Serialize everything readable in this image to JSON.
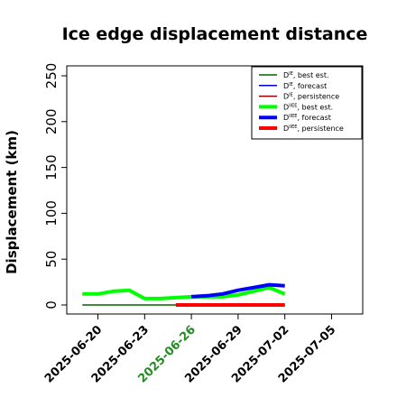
{
  "chart_data": {
    "type": "line",
    "title": "Ice edge displacement distance",
    "ylabel": "Displacement (km)",
    "xlabel": "",
    "ylim": [
      0,
      260
    ],
    "xlim": [
      "2025-06-18",
      "2025-07-07"
    ],
    "yticks": [
      0,
      50,
      100,
      150,
      200,
      250
    ],
    "xticks": [
      {
        "date": "2025-06-20",
        "label": "2025-06-20",
        "color": "#000000"
      },
      {
        "date": "2025-06-23",
        "label": "2025-06-23",
        "color": "#000000"
      },
      {
        "date": "2025-06-26",
        "label": "2025-06-26",
        "color": "#228B22"
      },
      {
        "date": "2025-06-29",
        "label": "2025-06-29",
        "color": "#000000"
      },
      {
        "date": "2025-07-02",
        "label": "2025-07-02",
        "color": "#000000"
      },
      {
        "date": "2025-07-05",
        "label": "2025-07-05",
        "color": "#000000"
      }
    ],
    "grid": false,
    "legend_position": "top-right",
    "series": [
      {
        "name": "D^IE, best est.",
        "base": "D",
        "sup": "IE",
        "suffix": ", best est.",
        "color": "#006400",
        "width": 1.5,
        "points": [
          [
            "2025-06-19",
            0
          ],
          [
            "2025-06-20",
            0
          ],
          [
            "2025-06-21",
            0
          ],
          [
            "2025-06-22",
            0
          ],
          [
            "2025-06-23",
            0
          ],
          [
            "2025-06-24",
            0
          ],
          [
            "2025-06-25",
            0
          ],
          [
            "2025-06-26",
            0
          ],
          [
            "2025-06-27",
            0
          ],
          [
            "2025-06-28",
            0
          ],
          [
            "2025-06-29",
            0
          ],
          [
            "2025-06-30",
            0
          ],
          [
            "2025-07-01",
            0
          ],
          [
            "2025-07-02",
            0
          ]
        ]
      },
      {
        "name": "D^IE, forecast",
        "base": "D",
        "sup": "IE",
        "suffix": ", forecast",
        "color": "#0000CD",
        "width": 1.5,
        "points": []
      },
      {
        "name": "D^IE, persistence",
        "base": "D",
        "sup": "IE",
        "suffix": ", persistence",
        "color": "#8B0000",
        "width": 1.5,
        "points": []
      },
      {
        "name": "D^IIEE, best est.",
        "base": "D",
        "sup": "IIEE",
        "suffix": ", best est.",
        "color": "#00FF00",
        "width": 4,
        "points": [
          [
            "2025-06-19",
            12
          ],
          [
            "2025-06-20",
            12
          ],
          [
            "2025-06-21",
            15
          ],
          [
            "2025-06-22",
            16
          ],
          [
            "2025-06-23",
            7
          ],
          [
            "2025-06-24",
            7
          ],
          [
            "2025-06-25",
            8
          ],
          [
            "2025-06-26",
            9
          ],
          [
            "2025-06-27",
            9
          ],
          [
            "2025-06-28",
            9
          ],
          [
            "2025-06-29",
            11
          ],
          [
            "2025-06-30",
            15
          ],
          [
            "2025-07-01",
            19
          ],
          [
            "2025-07-02",
            12
          ]
        ]
      },
      {
        "name": "D^IIEE, forecast",
        "base": "D",
        "sup": "IIEE",
        "suffix": ", forecast",
        "color": "#0000FF",
        "width": 4,
        "points": [
          [
            "2025-06-26",
            9
          ],
          [
            "2025-06-27",
            10
          ],
          [
            "2025-06-28",
            12
          ],
          [
            "2025-06-29",
            16
          ],
          [
            "2025-06-30",
            19
          ],
          [
            "2025-07-01",
            22
          ],
          [
            "2025-07-02",
            21
          ]
        ]
      },
      {
        "name": "D^IIEE, persistence",
        "base": "D",
        "sup": "IIEE",
        "suffix": ", persistence",
        "color": "#FF0000",
        "width": 4,
        "points": [
          [
            "2025-06-25",
            0
          ],
          [
            "2025-06-26",
            0
          ],
          [
            "2025-06-27",
            0
          ],
          [
            "2025-06-28",
            0
          ],
          [
            "2025-06-29",
            0
          ],
          [
            "2025-06-30",
            0
          ],
          [
            "2025-07-01",
            0
          ],
          [
            "2025-07-02",
            0
          ]
        ]
      }
    ]
  }
}
